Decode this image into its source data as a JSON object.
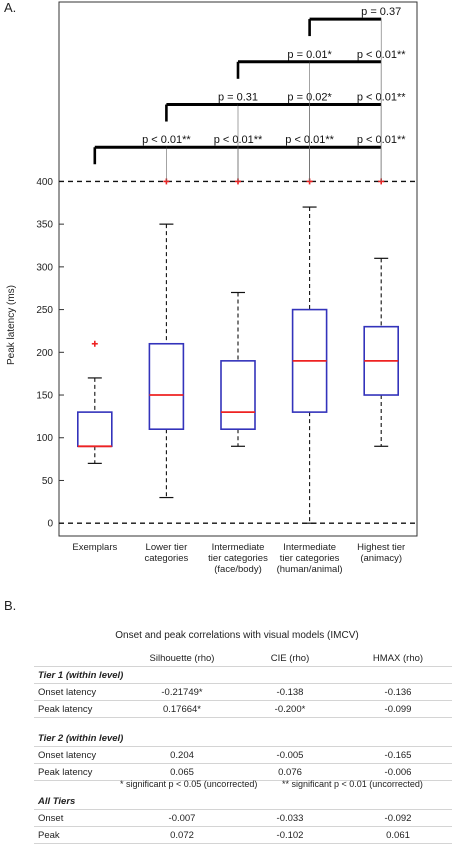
{
  "panel_a_label": "A.",
  "panel_b_label": "B.",
  "chart_data": {
    "type": "box",
    "ylabel": "Peak latency (ms)",
    "ylim": [
      -15,
      610
    ],
    "yticks": [
      0,
      50,
      100,
      150,
      200,
      250,
      300,
      350,
      400
    ],
    "dashed_lines": [
      0,
      400
    ],
    "categories": [
      [
        "Exemplars"
      ],
      [
        "Lower tier",
        "categories"
      ],
      [
        "Intermediate",
        "tier categories",
        "(face/body)"
      ],
      [
        "Intermediate",
        "tier categories",
        "(human/animal)"
      ],
      [
        "Highest tier",
        "(animacy)"
      ]
    ],
    "boxes": [
      {
        "whisker_low": 70,
        "q1": 90,
        "median": 90,
        "q3": 130,
        "whisker_high": 170,
        "outliers": [
          210
        ]
      },
      {
        "whisker_low": 30,
        "q1": 110,
        "median": 150,
        "q3": 210,
        "whisker_high": 350,
        "outliers": [
          400
        ]
      },
      {
        "whisker_low": 90,
        "q1": 110,
        "median": 130,
        "q3": 190,
        "whisker_high": 270,
        "outliers": [
          400
        ]
      },
      {
        "whisker_low": 0,
        "q1": 130,
        "median": 190,
        "q3": 250,
        "whisker_high": 370,
        "outliers": [
          400
        ]
      },
      {
        "whisker_low": 90,
        "q1": 150,
        "median": 190,
        "q3": 230,
        "whisker_high": 310,
        "outliers": [
          400
        ]
      }
    ],
    "comparisons": [
      {
        "ref": 0,
        "y": 440,
        "labels": [
          "p < 0.01**",
          "p < 0.01**",
          "p < 0.01**",
          "p < 0.01**"
        ]
      },
      {
        "ref": 1,
        "y": 490,
        "labels": [
          "p = 0.31",
          "p = 0.02*",
          "p < 0.01**"
        ]
      },
      {
        "ref": 2,
        "y": 540,
        "labels": [
          "p = 0.01*",
          "p < 0.01**"
        ]
      },
      {
        "ref": 3,
        "y": 590,
        "labels": [
          "p = 0.37"
        ]
      }
    ],
    "colors": {
      "box": "#3333bb",
      "median": "#ee2222",
      "outlier": "#ee2222",
      "whisker": "#111111"
    }
  },
  "table": {
    "title": "Onset and peak correlations with visual models (IMCV)",
    "headers": [
      "",
      "Silhouette  (rho)",
      "CIE  (rho)",
      "HMAX  (rho)"
    ],
    "sections": [
      {
        "title": "Tier 1 (within level)",
        "rows": [
          {
            "label": "Onset latency",
            "values": [
              "-0.21749*",
              "-0.138",
              "-0.136"
            ]
          },
          {
            "label": "Peak latency",
            "values": [
              "0.17664*",
              "-0.200*",
              "-0.099"
            ]
          }
        ]
      },
      {
        "title": "Tier 2 (within level)",
        "rows": [
          {
            "label": "Onset latency",
            "values": [
              "0.204",
              "-0.005",
              "-0.165"
            ]
          },
          {
            "label": "Peak latency",
            "values": [
              "0.065",
              "0.076",
              "-0.006"
            ]
          }
        ]
      },
      {
        "title": "All Tiers",
        "rows": [
          {
            "label": "Onset",
            "values": [
              "-0.007",
              "-0.033",
              "-0.092"
            ]
          },
          {
            "label": "Peak",
            "values": [
              "0.072",
              "-0.102",
              "0.061"
            ]
          }
        ]
      }
    ],
    "footnote_1": "* significant p < 0.05 (uncorrected)",
    "footnote_2": "** significant p < 0.01  (uncorrected)"
  }
}
